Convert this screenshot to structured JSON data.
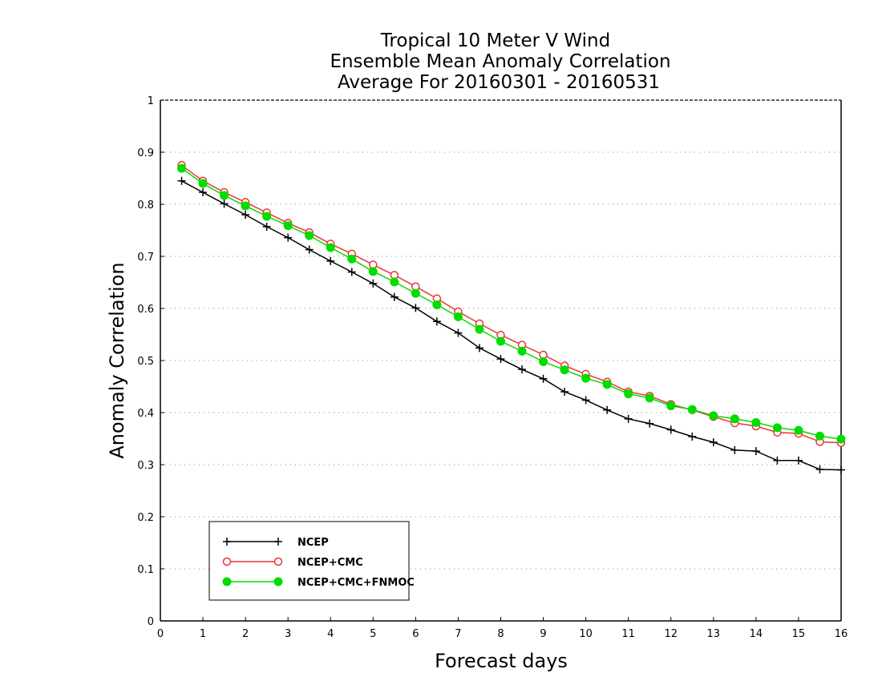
{
  "chart_data": {
    "type": "line",
    "title_lines": [
      "Tropical 10 Meter V Wind",
      "Ensemble Mean Anomaly Correlation",
      "Average For 20160301 - 20160531"
    ],
    "xlabel": "Forecast days",
    "ylabel": "Anomaly Correlation",
    "xlim": [
      0,
      16
    ],
    "ylim": [
      0,
      1
    ],
    "x_ticks": [
      "0",
      "1",
      "2",
      "3",
      "4",
      "5",
      "6",
      "7",
      "8",
      "9",
      "10",
      "11",
      "12",
      "13",
      "14",
      "15",
      "16"
    ],
    "y_ticks": [
      "0",
      "0.1",
      "0.2",
      "0.3",
      "0.4",
      "0.5",
      "0.6",
      "0.7",
      "0.8",
      "0.9",
      "1"
    ],
    "grid": "dotted horizontal",
    "legend_position": "bottom-left",
    "x": [
      0.5,
      1,
      1.5,
      2,
      2.5,
      3,
      3.5,
      4,
      4.5,
      5,
      5.5,
      6,
      6.5,
      7,
      7.5,
      8,
      8.5,
      9,
      9.5,
      10,
      10.5,
      11,
      11.5,
      12,
      12.5,
      13,
      13.5,
      14,
      14.5,
      15,
      15.5,
      16
    ],
    "series": [
      {
        "name": "NCEP",
        "color": "#000000",
        "marker": "plus",
        "values": [
          0.845,
          0.823,
          0.801,
          0.78,
          0.757,
          0.736,
          0.713,
          0.691,
          0.67,
          0.648,
          0.622,
          0.601,
          0.575,
          0.553,
          0.524,
          0.503,
          0.483,
          0.465,
          0.44,
          0.424,
          0.405,
          0.388,
          0.379,
          0.367,
          0.354,
          0.343,
          0.328,
          0.326,
          0.308,
          0.308,
          0.291,
          0.29
        ]
      },
      {
        "name": "NCEP+CMC",
        "color": "#ee3333",
        "marker": "open-circle",
        "values": [
          0.875,
          0.845,
          0.823,
          0.804,
          0.784,
          0.764,
          0.746,
          0.724,
          0.705,
          0.684,
          0.664,
          0.642,
          0.619,
          0.594,
          0.571,
          0.549,
          0.53,
          0.511,
          0.49,
          0.474,
          0.459,
          0.44,
          0.432,
          0.416,
          0.405,
          0.392,
          0.38,
          0.374,
          0.362,
          0.36,
          0.344,
          0.342
        ]
      },
      {
        "name": "NCEP+CMC+FNMOC",
        "color": "#00dd00",
        "marker": "filled-circle",
        "values": [
          0.869,
          0.84,
          0.817,
          0.797,
          0.777,
          0.759,
          0.74,
          0.717,
          0.695,
          0.671,
          0.651,
          0.629,
          0.607,
          0.584,
          0.56,
          0.537,
          0.518,
          0.498,
          0.482,
          0.466,
          0.454,
          0.436,
          0.428,
          0.413,
          0.406,
          0.394,
          0.388,
          0.381,
          0.371,
          0.366,
          0.355,
          0.349
        ]
      }
    ]
  }
}
